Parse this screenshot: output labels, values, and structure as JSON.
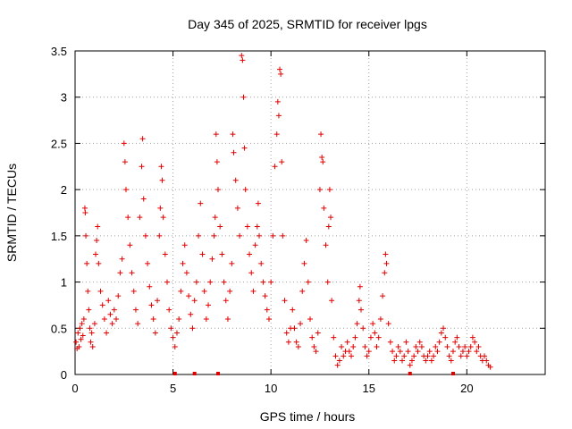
{
  "chart_data": {
    "type": "scatter",
    "title": "Day 345 of 2025, SRMTID for receiver lpgs",
    "xlabel": "GPS time / hours",
    "ylabel": "SRMTID / TECUs",
    "xlim": [
      0,
      24
    ],
    "ylim": [
      0,
      3.5
    ],
    "xticks": [
      0,
      5,
      10,
      15,
      20
    ],
    "yticks": [
      0,
      0.5,
      1,
      1.5,
      2,
      2.5,
      3,
      3.5
    ],
    "xtick_labels": [
      "0",
      "5",
      "10",
      "15",
      "20"
    ],
    "ytick_labels": [
      "0",
      "0.5",
      "1",
      "1.5",
      "2",
      "2.5",
      "3",
      "3.5"
    ],
    "grid": true,
    "marker": "plus",
    "color": "#e00000",
    "series": [
      {
        "name": "SRMTID",
        "points": [
          [
            0.05,
            0.35
          ],
          [
            0.1,
            0.28
          ],
          [
            0.15,
            0.45
          ],
          [
            0.2,
            0.3
          ],
          [
            0.25,
            0.5
          ],
          [
            0.3,
            0.38
          ],
          [
            0.35,
            0.55
          ],
          [
            0.4,
            0.42
          ],
          [
            0.45,
            0.6
          ],
          [
            0.5,
            1.8
          ],
          [
            0.52,
            1.75
          ],
          [
            0.55,
            1.5
          ],
          [
            0.6,
            1.2
          ],
          [
            0.65,
            0.9
          ],
          [
            0.7,
            0.7
          ],
          [
            0.75,
            0.5
          ],
          [
            0.8,
            0.35
          ],
          [
            0.85,
            0.45
          ],
          [
            0.9,
            0.3
          ],
          [
            1.0,
            0.55
          ],
          [
            1.05,
            1.3
          ],
          [
            1.1,
            1.45
          ],
          [
            1.15,
            1.6
          ],
          [
            1.2,
            1.2
          ],
          [
            1.3,
            0.9
          ],
          [
            1.4,
            0.75
          ],
          [
            1.5,
            0.6
          ],
          [
            1.6,
            0.45
          ],
          [
            1.7,
            0.8
          ],
          [
            1.8,
            0.65
          ],
          [
            1.9,
            0.55
          ],
          [
            2.0,
            0.7
          ],
          [
            2.1,
            0.6
          ],
          [
            2.2,
            0.85
          ],
          [
            2.3,
            1.1
          ],
          [
            2.4,
            1.25
          ],
          [
            2.5,
            2.5
          ],
          [
            2.55,
            2.3
          ],
          [
            2.6,
            2.0
          ],
          [
            2.7,
            1.7
          ],
          [
            2.8,
            1.4
          ],
          [
            2.9,
            1.1
          ],
          [
            3.0,
            0.9
          ],
          [
            3.1,
            0.7
          ],
          [
            3.2,
            0.55
          ],
          [
            3.3,
            1.7
          ],
          [
            3.4,
            2.25
          ],
          [
            3.45,
            2.55
          ],
          [
            3.5,
            1.9
          ],
          [
            3.6,
            1.5
          ],
          [
            3.7,
            1.2
          ],
          [
            3.8,
            0.95
          ],
          [
            3.9,
            0.75
          ],
          [
            4.0,
            0.6
          ],
          [
            4.1,
            0.45
          ],
          [
            4.2,
            0.8
          ],
          [
            4.3,
            1.5
          ],
          [
            4.35,
            1.8
          ],
          [
            4.4,
            2.25
          ],
          [
            4.45,
            2.1
          ],
          [
            4.5,
            1.7
          ],
          [
            4.6,
            1.3
          ],
          [
            4.7,
            1.0
          ],
          [
            4.8,
            0.7
          ],
          [
            4.9,
            0.5
          ],
          [
            5.0,
            0.4
          ],
          [
            5.1,
            0.3
          ],
          [
            5.2,
            0.45
          ],
          [
            5.3,
            0.6
          ],
          [
            5.4,
            0.9
          ],
          [
            5.5,
            1.2
          ],
          [
            5.6,
            1.4
          ],
          [
            5.7,
            1.1
          ],
          [
            5.8,
            0.85
          ],
          [
            5.9,
            0.65
          ],
          [
            6.0,
            0.5
          ],
          [
            6.1,
            0.8
          ],
          [
            6.2,
            1.0
          ],
          [
            6.3,
            1.5
          ],
          [
            6.4,
            1.85
          ],
          [
            6.5,
            1.3
          ],
          [
            6.6,
            0.9
          ],
          [
            6.7,
            0.6
          ],
          [
            6.8,
            0.75
          ],
          [
            6.9,
            1.0
          ],
          [
            7.0,
            1.25
          ],
          [
            7.1,
            1.5
          ],
          [
            7.15,
            1.7
          ],
          [
            7.2,
            2.6
          ],
          [
            7.25,
            2.3
          ],
          [
            7.3,
            2.0
          ],
          [
            7.4,
            1.6
          ],
          [
            7.5,
            1.3
          ],
          [
            7.6,
            1.0
          ],
          [
            7.7,
            0.8
          ],
          [
            7.8,
            0.6
          ],
          [
            7.9,
            0.9
          ],
          [
            8.0,
            1.2
          ],
          [
            8.05,
            2.6
          ],
          [
            8.1,
            2.4
          ],
          [
            8.2,
            2.1
          ],
          [
            8.3,
            1.8
          ],
          [
            8.4,
            1.5
          ],
          [
            8.5,
            3.45
          ],
          [
            8.55,
            3.4
          ],
          [
            8.6,
            3.0
          ],
          [
            8.65,
            2.45
          ],
          [
            8.7,
            2.0
          ],
          [
            8.8,
            1.6
          ],
          [
            8.9,
            1.3
          ],
          [
            9.0,
            1.1
          ],
          [
            9.1,
            0.9
          ],
          [
            9.2,
            1.4
          ],
          [
            9.3,
            1.6
          ],
          [
            9.35,
            1.85
          ],
          [
            9.4,
            1.5
          ],
          [
            9.5,
            1.2
          ],
          [
            9.6,
            1.0
          ],
          [
            9.7,
            0.85
          ],
          [
            9.8,
            0.7
          ],
          [
            9.9,
            0.6
          ],
          [
            10.0,
            1.0
          ],
          [
            10.1,
            1.5
          ],
          [
            10.2,
            2.25
          ],
          [
            10.3,
            2.6
          ],
          [
            10.35,
            2.95
          ],
          [
            10.4,
            2.8
          ],
          [
            10.45,
            3.3
          ],
          [
            10.5,
            3.25
          ],
          [
            10.55,
            2.3
          ],
          [
            10.6,
            1.5
          ],
          [
            10.7,
            0.8
          ],
          [
            10.8,
            0.45
          ],
          [
            10.9,
            0.35
          ],
          [
            11.0,
            0.5
          ],
          [
            11.1,
            0.7
          ],
          [
            11.2,
            0.5
          ],
          [
            11.3,
            0.35
          ],
          [
            11.4,
            0.3
          ],
          [
            11.5,
            0.55
          ],
          [
            11.6,
            0.9
          ],
          [
            11.7,
            1.2
          ],
          [
            11.8,
            1.45
          ],
          [
            11.9,
            1.0
          ],
          [
            12.0,
            0.6
          ],
          [
            12.1,
            0.4
          ],
          [
            12.2,
            0.3
          ],
          [
            12.3,
            0.25
          ],
          [
            12.4,
            0.45
          ],
          [
            12.5,
            2.0
          ],
          [
            12.55,
            2.6
          ],
          [
            12.6,
            2.35
          ],
          [
            12.65,
            2.3
          ],
          [
            12.7,
            1.8
          ],
          [
            12.8,
            1.4
          ],
          [
            12.9,
            1.0
          ],
          [
            12.95,
            1.6
          ],
          [
            13.0,
            2.0
          ],
          [
            13.05,
            1.7
          ],
          [
            13.1,
            0.8
          ],
          [
            13.2,
            0.4
          ],
          [
            13.3,
            0.2
          ],
          [
            13.4,
            0.1
          ],
          [
            13.5,
            0.15
          ],
          [
            13.6,
            0.3
          ],
          [
            13.7,
            0.2
          ],
          [
            13.8,
            0.25
          ],
          [
            13.9,
            0.35
          ],
          [
            14.0,
            0.25
          ],
          [
            14.1,
            0.2
          ],
          [
            14.2,
            0.3
          ],
          [
            14.3,
            0.4
          ],
          [
            14.4,
            0.55
          ],
          [
            14.5,
            0.8
          ],
          [
            14.55,
            0.95
          ],
          [
            14.6,
            0.7
          ],
          [
            14.7,
            0.5
          ],
          [
            14.8,
            0.3
          ],
          [
            14.9,
            0.2
          ],
          [
            15.0,
            0.25
          ],
          [
            15.1,
            0.4
          ],
          [
            15.2,
            0.55
          ],
          [
            15.3,
            0.45
          ],
          [
            15.4,
            0.3
          ],
          [
            15.5,
            0.4
          ],
          [
            15.6,
            0.6
          ],
          [
            15.7,
            0.85
          ],
          [
            15.8,
            1.1
          ],
          [
            15.85,
            1.3
          ],
          [
            15.9,
            1.2
          ],
          [
            16.0,
            0.55
          ],
          [
            16.1,
            0.35
          ],
          [
            16.2,
            0.25
          ],
          [
            16.3,
            0.15
          ],
          [
            16.4,
            0.2
          ],
          [
            16.5,
            0.3
          ],
          [
            16.6,
            0.25
          ],
          [
            16.7,
            0.15
          ],
          [
            16.8,
            0.2
          ],
          [
            16.9,
            0.35
          ],
          [
            17.0,
            0.25
          ],
          [
            17.1,
            0.1
          ],
          [
            17.2,
            0.15
          ],
          [
            17.3,
            0.2
          ],
          [
            17.4,
            0.3
          ],
          [
            17.5,
            0.25
          ],
          [
            17.6,
            0.35
          ],
          [
            17.7,
            0.3
          ],
          [
            17.8,
            0.2
          ],
          [
            17.9,
            0.15
          ],
          [
            18.0,
            0.2
          ],
          [
            18.1,
            0.25
          ],
          [
            18.2,
            0.15
          ],
          [
            18.3,
            0.2
          ],
          [
            18.4,
            0.3
          ],
          [
            18.5,
            0.25
          ],
          [
            18.6,
            0.35
          ],
          [
            18.7,
            0.45
          ],
          [
            18.8,
            0.5
          ],
          [
            18.9,
            0.4
          ],
          [
            19.0,
            0.3
          ],
          [
            19.1,
            0.2
          ],
          [
            19.2,
            0.15
          ],
          [
            19.3,
            0.25
          ],
          [
            19.4,
            0.35
          ],
          [
            19.5,
            0.4
          ],
          [
            19.6,
            0.3
          ],
          [
            19.7,
            0.2
          ],
          [
            19.8,
            0.25
          ],
          [
            19.9,
            0.3
          ],
          [
            20.0,
            0.2
          ],
          [
            20.1,
            0.25
          ],
          [
            20.2,
            0.3
          ],
          [
            20.3,
            0.4
          ],
          [
            20.4,
            0.35
          ],
          [
            20.5,
            0.25
          ],
          [
            20.6,
            0.3
          ],
          [
            20.7,
            0.2
          ],
          [
            20.8,
            0.15
          ],
          [
            20.9,
            0.2
          ],
          [
            21.0,
            0.15
          ],
          [
            21.1,
            0.1
          ],
          [
            21.2,
            0.08
          ]
        ]
      }
    ],
    "baseline_marks": [
      5.1,
      6.1,
      7.3,
      17.1,
      19.3
    ]
  }
}
